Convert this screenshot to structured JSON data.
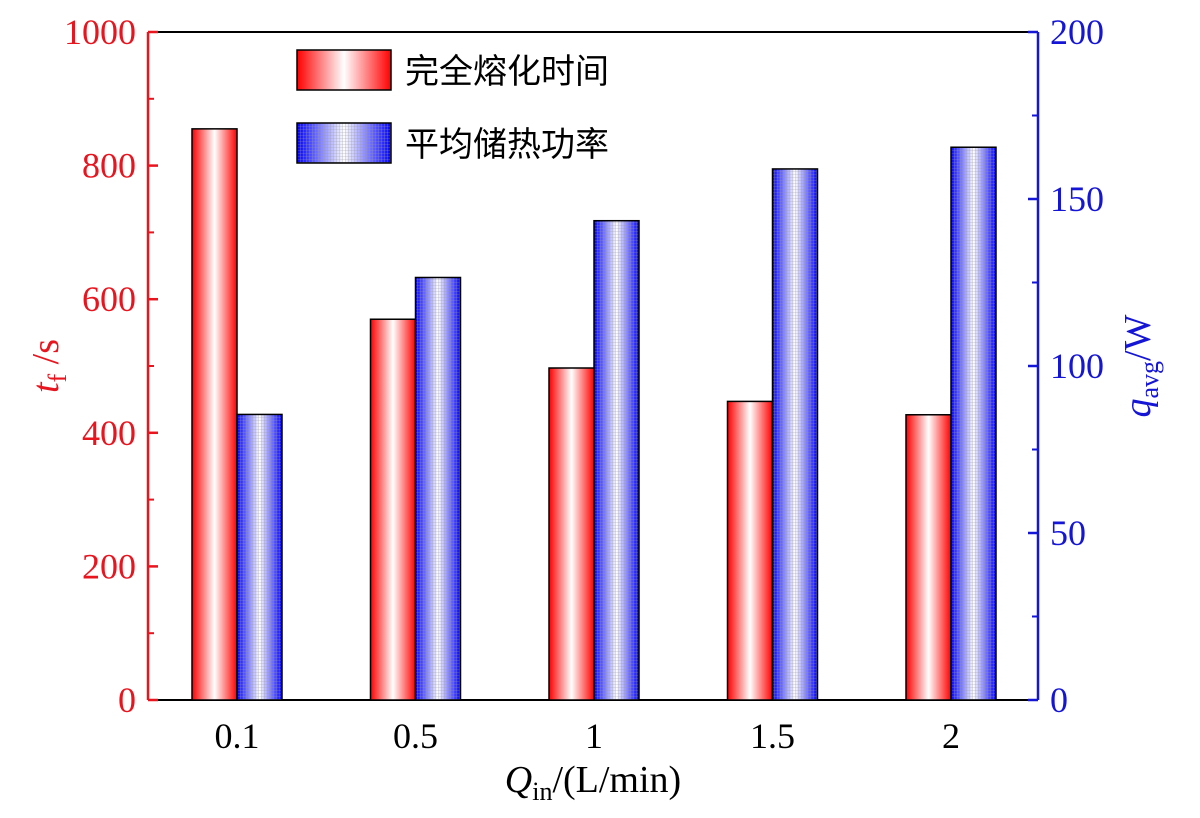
{
  "chart_data": {
    "type": "bar",
    "categories": [
      "0.1",
      "0.5",
      "1",
      "1.5",
      "2"
    ],
    "series": [
      {
        "name": "完全熔化时间",
        "axis": "left",
        "values": [
          855,
          570,
          497,
          447,
          427
        ]
      },
      {
        "name": "平均储热功率",
        "axis": "right",
        "values": [
          85.5,
          126.5,
          143.5,
          159,
          165.5
        ]
      }
    ],
    "left_axis": {
      "min": 0,
      "max": 1000,
      "ticks": [
        0,
        200,
        400,
        600,
        800,
        1000
      ],
      "label_main": "t",
      "label_sub": "f",
      "label_unit": " /s"
    },
    "right_axis": {
      "min": 0,
      "max": 200,
      "ticks": [
        0,
        50,
        100,
        150,
        200
      ],
      "label_main": "q",
      "label_sub": "avg",
      "label_unit": "/W"
    },
    "x_axis": {
      "label_main": "Q",
      "label_sub": "in",
      "label_unit": "/(L/min)"
    },
    "legend_position": "top-left",
    "grid": false
  },
  "colors": {
    "left": "#e8141e",
    "right": "#1515d6",
    "bar_left_edge": "#ff0000",
    "bar_right_edge": "#0000ff"
  }
}
